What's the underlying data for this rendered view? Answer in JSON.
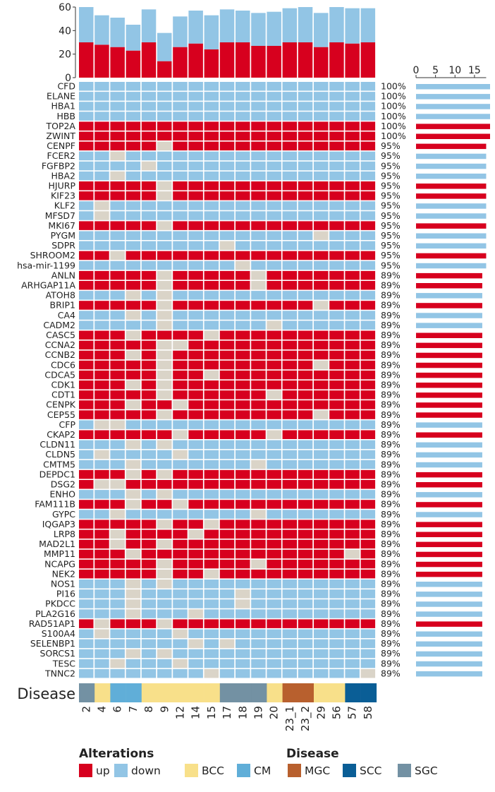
{
  "chart_data": {
    "type": "heatmap",
    "samples": [
      "2",
      "4",
      "6",
      "7",
      "8",
      "9",
      "12",
      "14",
      "15",
      "17",
      "18",
      "19",
      "20",
      "23_1",
      "23_2",
      "29",
      "56",
      "57",
      "58"
    ],
    "top_barplot": {
      "ylim": [
        0,
        60
      ],
      "yticks": [
        0,
        20,
        40,
        60
      ],
      "series": [
        {
          "name": "up",
          "values": [
            30,
            28,
            26,
            23,
            30,
            14,
            26,
            29,
            24,
            30,
            30,
            27,
            27,
            30,
            30,
            26,
            30,
            29,
            30
          ]
        },
        {
          "name": "down",
          "values": [
            30,
            25,
            25,
            22,
            28,
            24,
            26,
            28,
            29,
            28,
            27,
            28,
            29,
            29,
            30,
            29,
            30,
            30,
            29
          ]
        }
      ]
    },
    "right_barplot": {
      "xlim": [
        0,
        19
      ],
      "xticks": [
        0,
        5,
        10,
        15
      ]
    },
    "legend": {
      "alterations_title": "Alterations",
      "alterations": [
        {
          "label": "up",
          "color": "#d7001e"
        },
        {
          "label": "down",
          "color": "#92c5e5"
        }
      ],
      "disease_title": "Disease",
      "disease": [
        {
          "label": "BCC",
          "color": "#f8e08a"
        },
        {
          "label": "CM",
          "color": "#60aed8"
        },
        {
          "label": "MGC",
          "color": "#b8602e"
        },
        {
          "label": "SCC",
          "color": "#0a5e96"
        },
        {
          "label": "SGC",
          "color": "#7391a3"
        }
      ]
    },
    "disease_row_label": "Disease",
    "disease_annotation": [
      "SGC",
      "BCC",
      "CM",
      "CM",
      "BCC",
      "BCC",
      "BCC",
      "BCC",
      "BCC",
      "SGC",
      "SGC",
      "SGC",
      "BCC",
      "MGC",
      "MGC",
      "BCC",
      "BCC",
      "SCC",
      "SCC"
    ],
    "colors": {
      "up": "#d7001e",
      "down": "#92c5e5",
      "none": "#dad4c8",
      "BCC": "#f8e08a",
      "CM": "#60aed8",
      "MGC": "#b8602e",
      "SCC": "#0a5e96",
      "SGC": "#7391a3"
    },
    "genes": [
      {
        "name": "CFD",
        "pct": "100%",
        "count": 19,
        "dir": "down",
        "missing": []
      },
      {
        "name": "ELANE",
        "pct": "100%",
        "count": 19,
        "dir": "down",
        "missing": []
      },
      {
        "name": "HBA1",
        "pct": "100%",
        "count": 19,
        "dir": "down",
        "missing": []
      },
      {
        "name": "HBB",
        "pct": "100%",
        "count": 19,
        "dir": "down",
        "missing": []
      },
      {
        "name": "TOP2A",
        "pct": "100%",
        "count": 19,
        "dir": "up",
        "missing": []
      },
      {
        "name": "ZWINT",
        "pct": "100%",
        "count": 19,
        "dir": "up",
        "missing": []
      },
      {
        "name": "CENPF",
        "pct": "95%",
        "count": 18,
        "dir": "up",
        "missing": [
          "9"
        ]
      },
      {
        "name": "FCER2",
        "pct": "95%",
        "count": 18,
        "dir": "down",
        "missing": [
          "6"
        ]
      },
      {
        "name": "FGFBP2",
        "pct": "95%",
        "count": 18,
        "dir": "down",
        "missing": [
          "8"
        ]
      },
      {
        "name": "HBA2",
        "pct": "95%",
        "count": 18,
        "dir": "down",
        "missing": [
          "6"
        ]
      },
      {
        "name": "HJURP",
        "pct": "95%",
        "count": 18,
        "dir": "up",
        "missing": [
          "9"
        ]
      },
      {
        "name": "KIF23",
        "pct": "95%",
        "count": 18,
        "dir": "up",
        "missing": [
          "9"
        ]
      },
      {
        "name": "KLF2",
        "pct": "95%",
        "count": 18,
        "dir": "down",
        "missing": [
          "4"
        ]
      },
      {
        "name": "MFSD7",
        "pct": "95%",
        "count": 18,
        "dir": "down",
        "missing": [
          "4"
        ]
      },
      {
        "name": "MKI67",
        "pct": "95%",
        "count": 18,
        "dir": "up",
        "missing": [
          "9"
        ]
      },
      {
        "name": "PYGM",
        "pct": "95%",
        "count": 18,
        "dir": "down",
        "missing": [
          "29"
        ]
      },
      {
        "name": "SDPR",
        "pct": "95%",
        "count": 18,
        "dir": "down",
        "missing": [
          "17"
        ]
      },
      {
        "name": "SHROOM2",
        "pct": "95%",
        "count": 18,
        "dir": "up",
        "missing": [
          "6"
        ]
      },
      {
        "name": "hsa-mir-1199",
        "pct": "95%",
        "count": 18,
        "dir": "down",
        "missing": [
          "18"
        ]
      },
      {
        "name": "ANLN",
        "pct": "89%",
        "count": 17,
        "dir": "up",
        "missing": [
          "9",
          "19"
        ]
      },
      {
        "name": "ARHGAP11A",
        "pct": "89%",
        "count": 17,
        "dir": "up",
        "missing": [
          "9",
          "19"
        ]
      },
      {
        "name": "ATOH8",
        "pct": "89%",
        "count": 17,
        "dir": "down",
        "missing": [
          "7",
          "9"
        ]
      },
      {
        "name": "BRIP1",
        "pct": "89%",
        "count": 17,
        "dir": "up",
        "missing": [
          "9",
          "29"
        ]
      },
      {
        "name": "CA4",
        "pct": "89%",
        "count": 17,
        "dir": "down",
        "missing": [
          "7",
          "9"
        ]
      },
      {
        "name": "CADM2",
        "pct": "89%",
        "count": 17,
        "dir": "down",
        "missing": [
          "9",
          "20"
        ]
      },
      {
        "name": "CASC5",
        "pct": "89%",
        "count": 17,
        "dir": "up",
        "missing": [
          "7",
          "15"
        ]
      },
      {
        "name": "CCNA2",
        "pct": "89%",
        "count": 17,
        "dir": "up",
        "missing": [
          "9",
          "12"
        ]
      },
      {
        "name": "CCNB2",
        "pct": "89%",
        "count": 17,
        "dir": "up",
        "missing": [
          "7",
          "9"
        ]
      },
      {
        "name": "CDC6",
        "pct": "89%",
        "count": 17,
        "dir": "up",
        "missing": [
          "9",
          "29"
        ]
      },
      {
        "name": "CDCA5",
        "pct": "89%",
        "count": 17,
        "dir": "up",
        "missing": [
          "9",
          "15"
        ]
      },
      {
        "name": "CDK1",
        "pct": "89%",
        "count": 17,
        "dir": "up",
        "missing": [
          "7",
          "9"
        ]
      },
      {
        "name": "CDT1",
        "pct": "89%",
        "count": 17,
        "dir": "up",
        "missing": [
          "9",
          "20"
        ]
      },
      {
        "name": "CENPK",
        "pct": "89%",
        "count": 17,
        "dir": "up",
        "missing": [
          "7",
          "12"
        ]
      },
      {
        "name": "CEP55",
        "pct": "89%",
        "count": 17,
        "dir": "up",
        "missing": [
          "9",
          "29"
        ]
      },
      {
        "name": "CFP",
        "pct": "89%",
        "count": 17,
        "dir": "down",
        "missing": [
          "4",
          "6"
        ]
      },
      {
        "name": "CKAP2",
        "pct": "89%",
        "count": 17,
        "dir": "up",
        "missing": [
          "12",
          "20"
        ]
      },
      {
        "name": "CLDN11",
        "pct": "89%",
        "count": 17,
        "dir": "down",
        "missing": [
          "7",
          "9"
        ]
      },
      {
        "name": "CLDN5",
        "pct": "89%",
        "count": 17,
        "dir": "down",
        "missing": [
          "4",
          "12"
        ]
      },
      {
        "name": "CMTM5",
        "pct": "89%",
        "count": 17,
        "dir": "down",
        "missing": [
          "7",
          "19"
        ]
      },
      {
        "name": "DEPDC1",
        "pct": "89%",
        "count": 17,
        "dir": "up",
        "missing": [
          "7",
          "9"
        ]
      },
      {
        "name": "DSG2",
        "pct": "89%",
        "count": 17,
        "dir": "up",
        "missing": [
          "4",
          "6"
        ]
      },
      {
        "name": "ENHO",
        "pct": "89%",
        "count": 17,
        "dir": "down",
        "missing": [
          "7",
          "9"
        ]
      },
      {
        "name": "FAM111B",
        "pct": "89%",
        "count": 17,
        "dir": "up",
        "missing": [
          "7",
          "12"
        ]
      },
      {
        "name": "GYPC",
        "pct": "89%",
        "count": 17,
        "dir": "down",
        "missing": [
          "6",
          "19"
        ]
      },
      {
        "name": "IQGAP3",
        "pct": "89%",
        "count": 17,
        "dir": "up",
        "missing": [
          "9",
          "15"
        ]
      },
      {
        "name": "LRP8",
        "pct": "89%",
        "count": 17,
        "dir": "up",
        "missing": [
          "6",
          "14"
        ]
      },
      {
        "name": "MAD2L1",
        "pct": "89%",
        "count": 17,
        "dir": "up",
        "missing": [
          "6",
          "9"
        ]
      },
      {
        "name": "MMP11",
        "pct": "89%",
        "count": 17,
        "dir": "up",
        "missing": [
          "7",
          "57"
        ]
      },
      {
        "name": "NCAPG",
        "pct": "89%",
        "count": 17,
        "dir": "up",
        "missing": [
          "9",
          "19"
        ]
      },
      {
        "name": "NEK2",
        "pct": "89%",
        "count": 17,
        "dir": "up",
        "missing": [
          "9",
          "15"
        ]
      },
      {
        "name": "NOS1",
        "pct": "89%",
        "count": 17,
        "dir": "down",
        "missing": [
          "7",
          "9"
        ]
      },
      {
        "name": "PI16",
        "pct": "89%",
        "count": 17,
        "dir": "down",
        "missing": [
          "7",
          "18"
        ]
      },
      {
        "name": "PKDCC",
        "pct": "89%",
        "count": 17,
        "dir": "down",
        "missing": [
          "7",
          "18"
        ]
      },
      {
        "name": "PLA2G16",
        "pct": "89%",
        "count": 17,
        "dir": "down",
        "missing": [
          "7",
          "14"
        ]
      },
      {
        "name": "RAD51AP1",
        "pct": "89%",
        "count": 17,
        "dir": "up",
        "missing": [
          "4",
          "9"
        ]
      },
      {
        "name": "S100A4",
        "pct": "89%",
        "count": 17,
        "dir": "down",
        "missing": [
          "4",
          "12"
        ]
      },
      {
        "name": "SELENBP1",
        "pct": "89%",
        "count": 17,
        "dir": "down",
        "missing": [
          "14",
          "17"
        ]
      },
      {
        "name": "SORCS1",
        "pct": "89%",
        "count": 17,
        "dir": "down",
        "missing": [
          "7",
          "9"
        ]
      },
      {
        "name": "TESC",
        "pct": "89%",
        "count": 17,
        "dir": "down",
        "missing": [
          "6",
          "12"
        ]
      },
      {
        "name": "TNNC2",
        "pct": "89%",
        "count": 17,
        "dir": "down",
        "missing": [
          "15",
          "58"
        ]
      }
    ]
  }
}
